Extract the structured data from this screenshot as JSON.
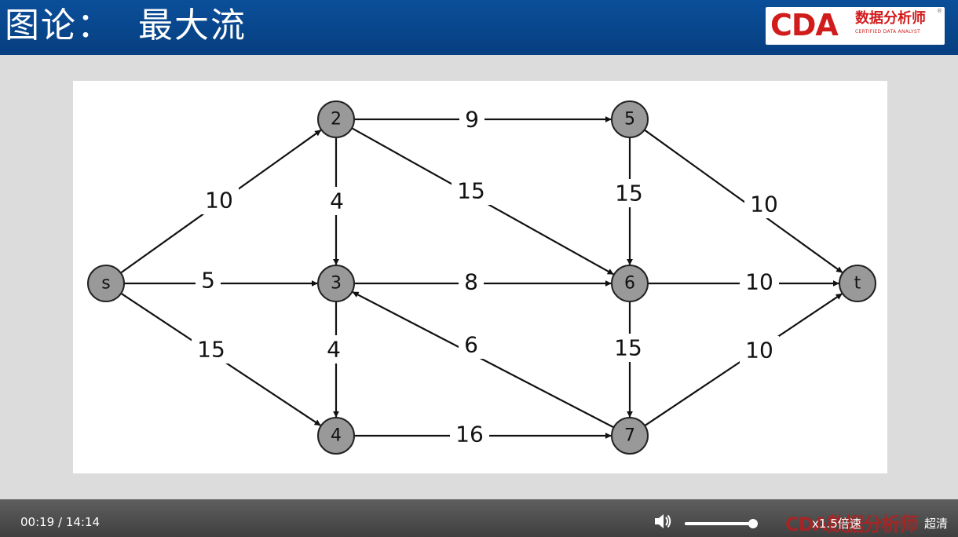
{
  "slide": {
    "title": "图论：  最大流"
  },
  "logo": {
    "brand": "CDA",
    "cn_text": "数据分析师",
    "en_text": "CERTIFIED DATA ANALYST",
    "registered": "®"
  },
  "graph": {
    "nodes": [
      {
        "id": "s",
        "label": "s"
      },
      {
        "id": "2",
        "label": "2"
      },
      {
        "id": "3",
        "label": "3"
      },
      {
        "id": "4",
        "label": "4"
      },
      {
        "id": "5",
        "label": "5"
      },
      {
        "id": "6",
        "label": "6"
      },
      {
        "id": "7",
        "label": "7"
      },
      {
        "id": "t",
        "label": "t"
      }
    ],
    "edges": [
      {
        "from": "s",
        "to": "2",
        "capacity": "10"
      },
      {
        "from": "s",
        "to": "3",
        "capacity": "5"
      },
      {
        "from": "s",
        "to": "4",
        "capacity": "15"
      },
      {
        "from": "2",
        "to": "5",
        "capacity": "9"
      },
      {
        "from": "2",
        "to": "3",
        "capacity": "4"
      },
      {
        "from": "2",
        "to": "6",
        "capacity": "15"
      },
      {
        "from": "3",
        "to": "6",
        "capacity": "8"
      },
      {
        "from": "3",
        "to": "4",
        "capacity": "4"
      },
      {
        "from": "7",
        "to": "3",
        "capacity": "6"
      },
      {
        "from": "4",
        "to": "7",
        "capacity": "16"
      },
      {
        "from": "5",
        "to": "6",
        "capacity": "15"
      },
      {
        "from": "5",
        "to": "t",
        "capacity": "10"
      },
      {
        "from": "6",
        "to": "t",
        "capacity": "10"
      },
      {
        "from": "6",
        "to": "7",
        "capacity": "15"
      },
      {
        "from": "7",
        "to": "t",
        "capacity": "10"
      }
    ]
  },
  "player": {
    "time_display": "00:19 / 14:14",
    "volume_level": 1.0,
    "speed_label": "x1.5倍速",
    "quality_label": "超清",
    "watermark_text": "CDA数据分析师",
    "volume_icon": "speaker-icon"
  },
  "colors": {
    "header_bg": "#0a4f9a",
    "brand_red": "#d11c1c",
    "node_fill": "#999999"
  }
}
